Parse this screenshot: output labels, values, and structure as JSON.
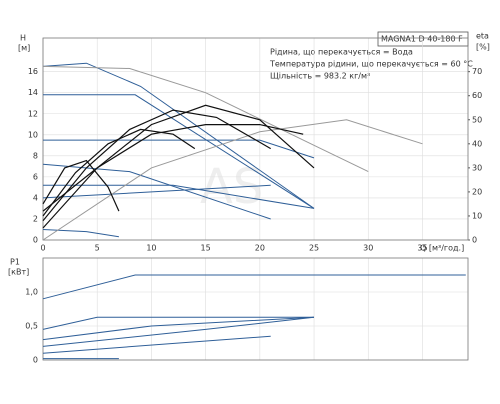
{
  "chart_data": [
    {
      "type": "line",
      "title": "MAGNA1 D 40-180 F",
      "annotations": [
        "Рідина, що перекачується = Вода",
        "Температура рідини, що перекачується = 60 °C",
        "Щільність = 983.2 кг/м³"
      ],
      "watermark": "AS",
      "ylabel": "H",
      "yunit": "[м]",
      "y2label": "eta",
      "y2unit": "[%]",
      "xlabel": "Q [м³/год.]",
      "xlim": [
        0,
        39.2
      ],
      "xticks": [
        0,
        5,
        10,
        15,
        20,
        25,
        30,
        35
      ],
      "ylim": [
        0,
        19.2
      ],
      "yticks": [
        0,
        2,
        4,
        6,
        8,
        10,
        12,
        14,
        16
      ],
      "y2lim": [
        0,
        84
      ],
      "y2ticks": [
        0,
        10,
        20,
        30,
        40,
        50,
        60,
        70
      ],
      "grid": true,
      "series": [
        {
          "color": "#2f5f98",
          "x": [
            0,
            4,
            9,
            25
          ],
          "values": [
            16.5,
            16.8,
            14.6,
            3
          ]
        },
        {
          "color": "#2f5f98",
          "x": [
            0,
            8.5,
            25
          ],
          "values": [
            13.8,
            13.8,
            3
          ]
        },
        {
          "color": "#2f5f98",
          "x": [
            0,
            20,
            25
          ],
          "values": [
            9.5,
            9.5,
            7.8
          ]
        },
        {
          "color": "#2f5f98",
          "x": [
            0,
            12,
            25
          ],
          "values": [
            5.2,
            5.2,
            3
          ]
        },
        {
          "color": "#2f5f98",
          "x": [
            0,
            21
          ],
          "values": [
            4,
            5.2
          ]
        },
        {
          "color": "#2f5f98",
          "x": [
            0,
            8,
            21
          ],
          "values": [
            7.2,
            6.5,
            2
          ]
        },
        {
          "color": "#2f5f98",
          "x": [
            0,
            4,
            7
          ],
          "values": [
            1,
            0.8,
            0.3
          ]
        },
        {
          "color": "#999999",
          "x": [
            0,
            8,
            15,
            25,
            30
          ],
          "values": [
            16.5,
            16.3,
            14,
            9,
            6.5
          ]
        },
        {
          "color": "#999999",
          "axis": "y2",
          "x": [
            0,
            10,
            20,
            28,
            35
          ],
          "values": [
            0,
            30,
            45,
            50,
            40
          ]
        },
        {
          "color": "#111111",
          "axis": "y2",
          "x": [
            0,
            5,
            10,
            15,
            20,
            25
          ],
          "values": [
            5,
            30,
            48,
            56,
            50,
            30
          ]
        },
        {
          "color": "#111111",
          "axis": "y2",
          "x": [
            0,
            4,
            8,
            12,
            16,
            21
          ],
          "values": [
            8,
            30,
            46,
            54,
            51,
            38
          ]
        },
        {
          "color": "#111111",
          "axis": "y2",
          "x": [
            0,
            5,
            10,
            15,
            20,
            24
          ],
          "values": [
            12,
            30,
            44,
            48,
            48,
            44
          ]
        },
        {
          "color": "#111111",
          "axis": "y2",
          "x": [
            0,
            3,
            6,
            9,
            12,
            14
          ],
          "values": [
            10,
            28,
            40,
            46,
            44,
            38
          ]
        },
        {
          "color": "#111111",
          "axis": "y2",
          "x": [
            0,
            2,
            4,
            6,
            7
          ],
          "values": [
            15,
            30,
            33,
            22,
            12
          ]
        }
      ]
    },
    {
      "type": "line",
      "ylabel": "P1",
      "yunit": "[кВт]",
      "xlim": [
        0,
        39.2
      ],
      "ylim": [
        0,
        1.5
      ],
      "yticks": [
        0,
        {
          "value": 0.5,
          "label": "0,5"
        },
        {
          "value": 1,
          "label": "1,0"
        }
      ],
      "grid": true,
      "series": [
        {
          "color": "#2f5f98",
          "x": [
            0,
            8.5,
            39
          ],
          "values": [
            0.9,
            1.25,
            1.25
          ]
        },
        {
          "color": "#2f5f98",
          "x": [
            0,
            5,
            25
          ],
          "values": [
            0.45,
            0.63,
            0.63
          ]
        },
        {
          "color": "#2f5f98",
          "x": [
            0,
            10,
            25
          ],
          "values": [
            0.3,
            0.5,
            0.63
          ]
        },
        {
          "color": "#2f5f98",
          "x": [
            0,
            15,
            25
          ],
          "values": [
            0.2,
            0.45,
            0.63
          ]
        },
        {
          "color": "#2f5f98",
          "x": [
            0,
            21
          ],
          "values": [
            0.1,
            0.35
          ]
        },
        {
          "color": "#2f5f98",
          "x": [
            0,
            7
          ],
          "values": [
            0.02,
            0.02
          ]
        }
      ]
    }
  ]
}
